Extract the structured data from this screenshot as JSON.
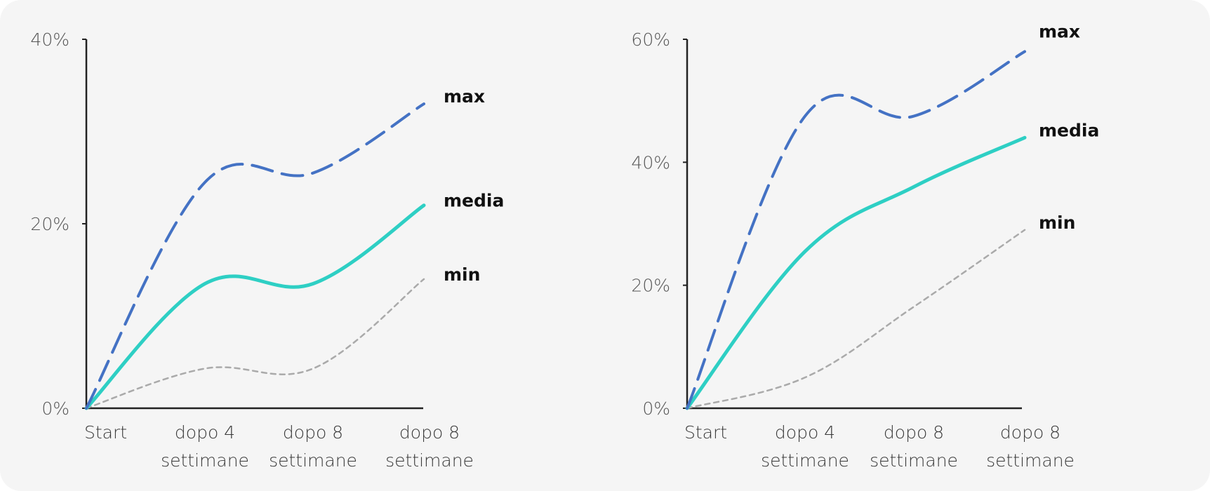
{
  "chart_data": [
    {
      "type": "line",
      "categories": [
        "Start",
        "dopo 4 settimane",
        "dopo 8 settimane",
        "dopo 8 settimane"
      ],
      "y_ticks": [
        "0%",
        "20%",
        "40%"
      ],
      "ylim": [
        0,
        40
      ],
      "series": [
        {
          "name": "max",
          "values": [
            0,
            24.5,
            25.5,
            33
          ],
          "color": "#4472c4",
          "style": "long-dash"
        },
        {
          "name": "media",
          "values": [
            0,
            13.5,
            13.5,
            22
          ],
          "color": "#2ecfc4",
          "style": "solid"
        },
        {
          "name": "min",
          "values": [
            0,
            4.3,
            4.3,
            14
          ],
          "color": "#aaaaaa",
          "style": "short-dash"
        }
      ],
      "grid": false
    },
    {
      "type": "line",
      "categories": [
        "Start",
        "dopo 4 settimane",
        "dopo 8 settimane",
        "dopo 8 settimane"
      ],
      "y_ticks": [
        "0%",
        "20%",
        "40%",
        "60%"
      ],
      "ylim": [
        0,
        60
      ],
      "series": [
        {
          "name": "max",
          "values": [
            0,
            47.5,
            47.5,
            58
          ],
          "color": "#4472c4",
          "style": "long-dash"
        },
        {
          "name": "media",
          "values": [
            0,
            25.5,
            36,
            44
          ],
          "color": "#2ecfc4",
          "style": "solid"
        },
        {
          "name": "min",
          "values": [
            0,
            5,
            16.5,
            29
          ],
          "color": "#aaaaaa",
          "style": "short-dash"
        }
      ],
      "grid": false
    }
  ]
}
